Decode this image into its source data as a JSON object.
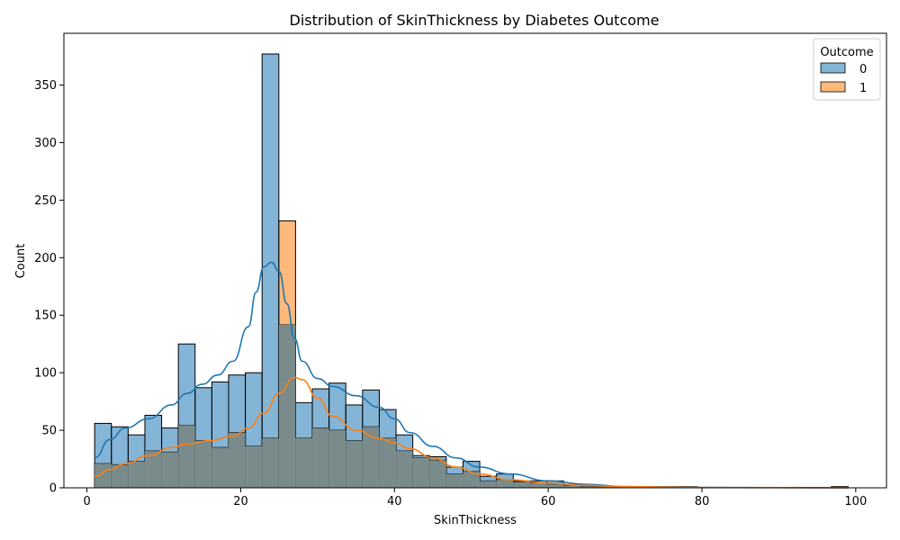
{
  "chart_data": {
    "type": "histogram",
    "title": "Distribution of SkinThickness by Diabetes Outcome",
    "xlabel": "SkinThickness",
    "ylabel": "Count",
    "xlim": [
      -3,
      104
    ],
    "ylim": [
      0,
      395
    ],
    "xticks": [
      0,
      20,
      40,
      60,
      80,
      100
    ],
    "yticks": [
      0,
      50,
      100,
      150,
      200,
      250,
      300,
      350
    ],
    "grid": false,
    "bin_start": 1,
    "bin_width": 2.178,
    "legend": {
      "title": "Outcome",
      "placement": "top-right"
    },
    "series": [
      {
        "name": "0",
        "color": "#1f77b4",
        "values": [
          56,
          53,
          46,
          63,
          52,
          125,
          87,
          92,
          98,
          100,
          377,
          142,
          74,
          86,
          91,
          72,
          85,
          68,
          46,
          28,
          27,
          18,
          23,
          10,
          12,
          6,
          6,
          6,
          3,
          2,
          1,
          1,
          1,
          1,
          1,
          1,
          0,
          0,
          0,
          0,
          0,
          0,
          0,
          0,
          1
        ]
      },
      {
        "name": "1",
        "color": "#ff7f0e",
        "values": [
          21,
          20,
          23,
          32,
          31,
          54,
          41,
          35,
          48,
          36,
          43,
          232,
          43,
          52,
          50,
          41,
          53,
          43,
          32,
          26,
          24,
          12,
          14,
          6,
          7,
          5,
          4,
          3,
          2,
          1,
          1,
          0,
          0,
          0,
          0,
          0,
          0,
          0,
          0,
          0,
          0,
          0,
          0,
          0,
          0
        ]
      }
    ],
    "kde": [
      {
        "series": "0",
        "points": [
          [
            1,
            26
          ],
          [
            3,
            42
          ],
          [
            5,
            52
          ],
          [
            8,
            60
          ],
          [
            11,
            72
          ],
          [
            13,
            82
          ],
          [
            15,
            90
          ],
          [
            17,
            98
          ],
          [
            19,
            110
          ],
          [
            21,
            140
          ],
          [
            22,
            170
          ],
          [
            23,
            192
          ],
          [
            24,
            196
          ],
          [
            25,
            188
          ],
          [
            26,
            160
          ],
          [
            27,
            130
          ],
          [
            28,
            110
          ],
          [
            30,
            95
          ],
          [
            32,
            88
          ],
          [
            35,
            80
          ],
          [
            38,
            70
          ],
          [
            40,
            60
          ],
          [
            42,
            48
          ],
          [
            45,
            36
          ],
          [
            48,
            26
          ],
          [
            51,
            18
          ],
          [
            55,
            12
          ],
          [
            60,
            6
          ],
          [
            65,
            3
          ],
          [
            70,
            1
          ],
          [
            80,
            0.4
          ],
          [
            99,
            0
          ]
        ]
      },
      {
        "series": "1",
        "points": [
          [
            1,
            10
          ],
          [
            3,
            16
          ],
          [
            5,
            21
          ],
          [
            8,
            28
          ],
          [
            11,
            35
          ],
          [
            13,
            38
          ],
          [
            16,
            41
          ],
          [
            19,
            45
          ],
          [
            21,
            52
          ],
          [
            23,
            65
          ],
          [
            25,
            82
          ],
          [
            27,
            96
          ],
          [
            28,
            94
          ],
          [
            30,
            78
          ],
          [
            32,
            62
          ],
          [
            35,
            50
          ],
          [
            38,
            43
          ],
          [
            40,
            39
          ],
          [
            42,
            34
          ],
          [
            45,
            26
          ],
          [
            48,
            18
          ],
          [
            51,
            12
          ],
          [
            55,
            7
          ],
          [
            60,
            4
          ],
          [
            65,
            2
          ],
          [
            70,
            1
          ],
          [
            80,
            0.3
          ],
          [
            99,
            0
          ]
        ]
      }
    ]
  }
}
